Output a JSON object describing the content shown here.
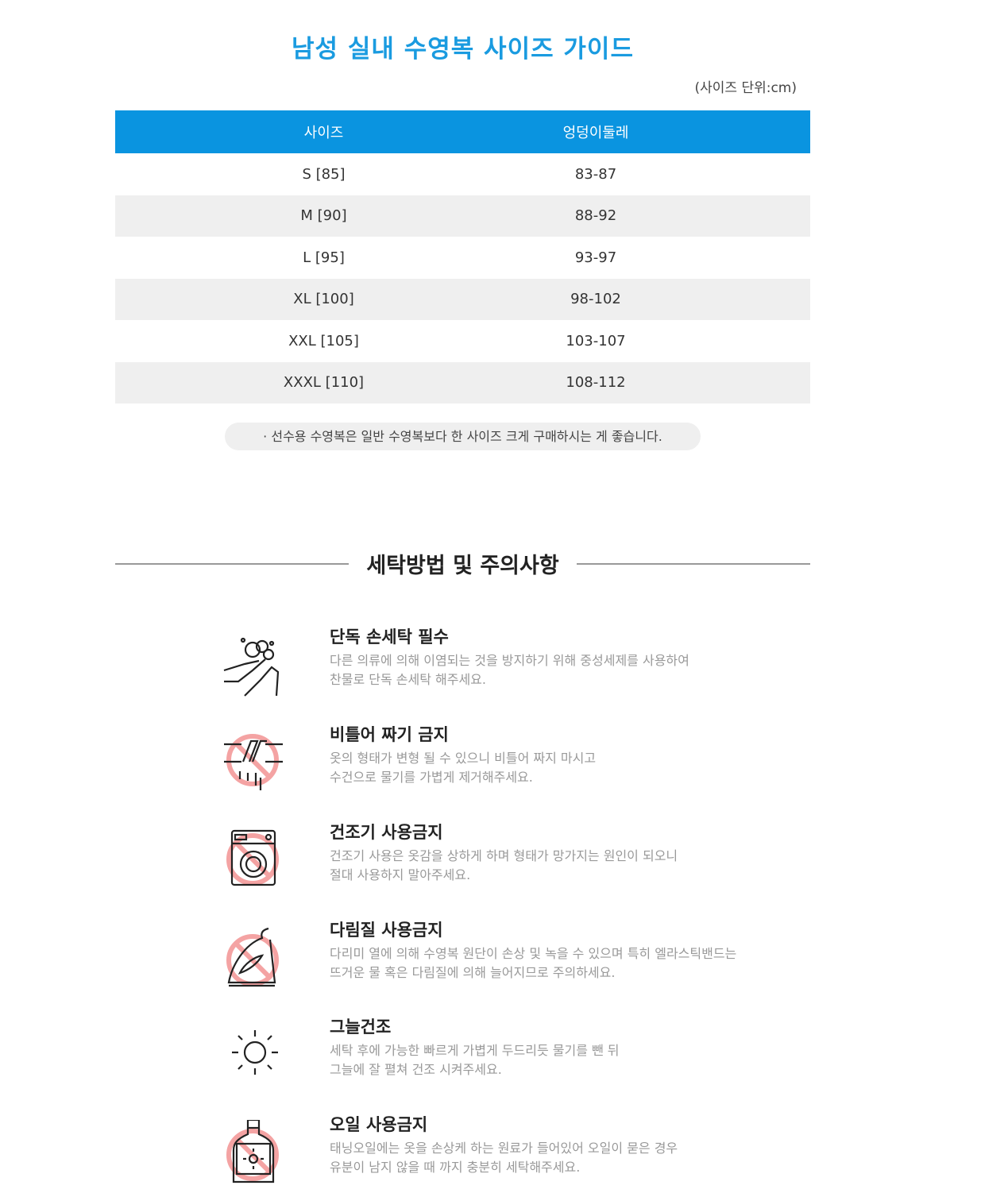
{
  "title": "남성 실내 수영복 사이즈  가이드",
  "unit_note": "(사이즈 단위:cm)",
  "table": {
    "headers": [
      "사이즈",
      "엉덩이둘레"
    ],
    "rows": [
      [
        "S [85]",
        "83-87"
      ],
      [
        "M [90]",
        "88-92"
      ],
      [
        "L [95]",
        "93-97"
      ],
      [
        "XL [100]",
        "98-102"
      ],
      [
        "XXL [105]",
        "103-107"
      ],
      [
        "XXXL [110]",
        "108-112"
      ]
    ]
  },
  "tip": "· 선수용 수영복은 일반 수영복보다 한 사이즈 크게 구매하시는 게 좋습니다.",
  "colors": {
    "accent": "#0a94e0",
    "title": "#1a9be0",
    "prohibit": "#f4a3a3"
  },
  "care": {
    "title": "세탁방법 및 주의사항",
    "items": [
      {
        "icon": "hand-wash-icon",
        "title": "단독 손세탁 필수",
        "line1": "다른 의류에 의해 이염되는 것을 방지하기 위해 중성세제를 사용하여",
        "line2": "찬물로 단독 손세탁 해주세요."
      },
      {
        "icon": "no-wring-icon",
        "title": "비틀어 짜기 금지",
        "line1": "옷의 형태가 변형 될 수 있으니 비틀어 짜지 마시고",
        "line2": "수건으로 물기를 가볍게 제거해주세요."
      },
      {
        "icon": "no-dryer-icon",
        "title": "건조기 사용금지",
        "line1": "건조기 사용은 옷감을 상하게 하며 형태가 망가지는 원인이 되오니",
        "line2": "절대 사용하지 말아주세요."
      },
      {
        "icon": "no-iron-icon",
        "title": "다림질 사용금지",
        "line1": "다리미 열에 의해 수영복 원단이 손상 및 녹을 수 있으며 특히 엘라스틱밴드는",
        "line2": "뜨거운 물 혹은 다림질에 의해 늘어지므로 주의하세요."
      },
      {
        "icon": "shade-dry-icon",
        "title": "그늘건조",
        "line1": "세탁 후에 가능한 빠르게 가볍게 두드리듯 물기를 뺀 뒤",
        "line2": "그늘에 잘 펼쳐 건조 시켜주세요."
      },
      {
        "icon": "no-oil-icon",
        "title": "오일 사용금지",
        "line1": "태닝오일에는 옷을 손상케 하는 원료가 들어있어 오일이 묻은 경우",
        "line2": "유분이 남지 않을 때 까지 충분히 세탁해주세요."
      }
    ]
  }
}
